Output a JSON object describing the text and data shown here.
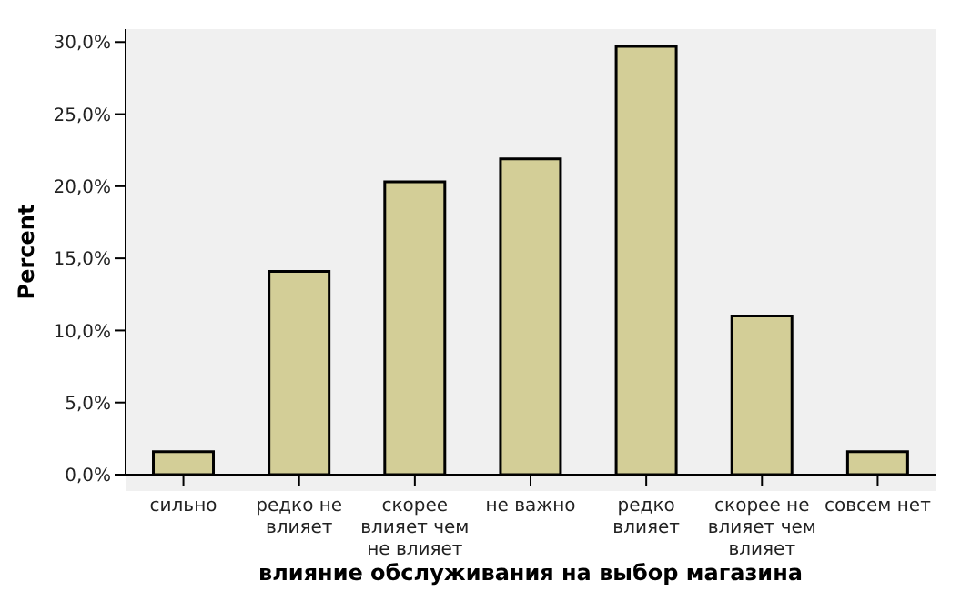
{
  "chart_data": {
    "type": "bar",
    "xlabel": "влияние обслуживания на выбор магазина",
    "ylabel": "Percent",
    "categories": [
      "сильно",
      "редко не влияет",
      "скорее влияет чем не влияет",
      "не важно",
      "редко влияет",
      "скорее не влияет чем влияет",
      "совсем нет"
    ],
    "values": [
      1.6,
      14.1,
      20.3,
      21.9,
      29.7,
      11.0,
      1.6
    ],
    "color": "#d3ce97",
    "ylim": [
      0,
      30.9
    ],
    "yticks": [
      {
        "value": 0,
        "label": "0,0%"
      },
      {
        "value": 5,
        "label": "5,0%"
      },
      {
        "value": 10,
        "label": "10,0%"
      },
      {
        "value": 15,
        "label": "15,0%"
      },
      {
        "value": 20,
        "label": "20,0%"
      },
      {
        "value": 25,
        "label": "25,0%"
      },
      {
        "value": 30,
        "label": "30,0%"
      }
    ],
    "grid": false,
    "legend": false
  }
}
